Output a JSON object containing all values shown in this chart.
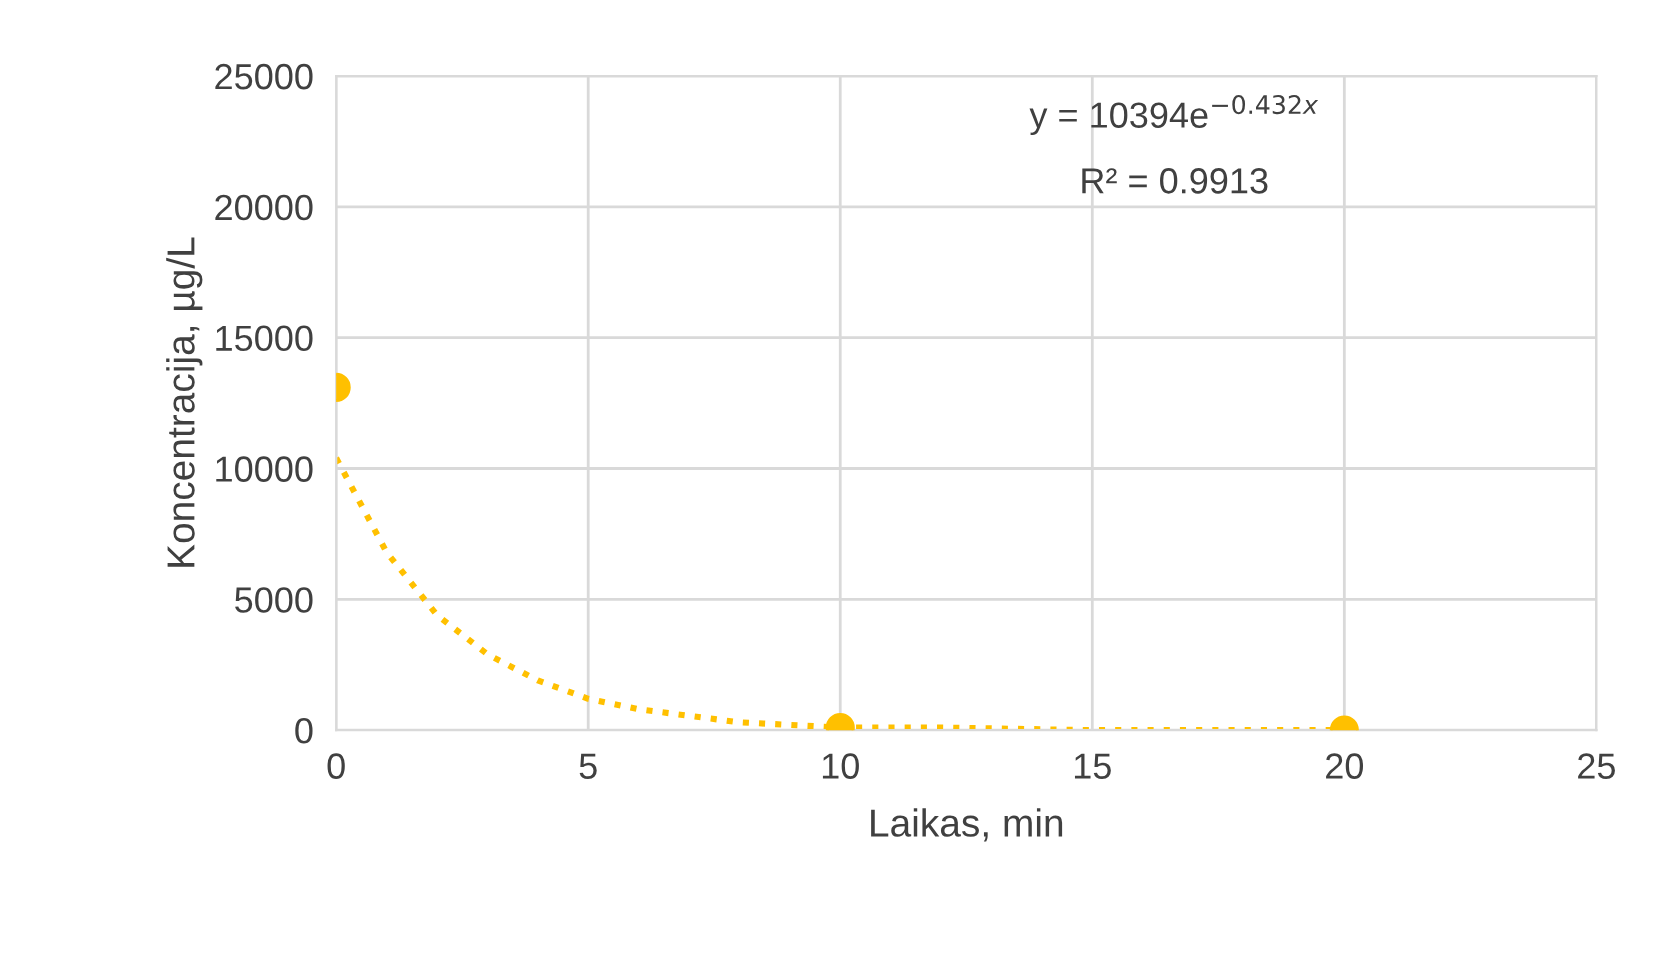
{
  "chart_data": {
    "type": "scatter",
    "xlabel": "Laikas, min",
    "ylabel": "Koncentracija, µg/L",
    "xlim": [
      0,
      25
    ],
    "xticks": [
      0,
      5,
      10,
      15,
      20,
      25
    ],
    "ylim": [
      0,
      25000
    ],
    "yticks": [
      0,
      5000,
      10000,
      15000,
      20000,
      25000
    ],
    "grid": true,
    "legend": false,
    "series": [
      {
        "color": "#ffc000",
        "marker": "circle",
        "x": [
          0,
          10,
          20
        ],
        "values": [
          13100,
          100,
          0
        ]
      },
      {
        "type": "line",
        "color": "#ffc000",
        "line_style": "dotted",
        "marker": "none",
        "x": [
          0,
          1,
          2,
          3,
          4,
          5,
          6,
          8,
          10,
          12,
          15,
          20
        ],
        "values": [
          10400,
          6800,
          4400,
          2900,
          1900,
          1200,
          800,
          300,
          100,
          100,
          0,
          0
        ]
      }
    ],
    "annotations": [
      "y = 10394e$^{−0.432x}$",
      "R² = 0.9913"
    ]
  }
}
